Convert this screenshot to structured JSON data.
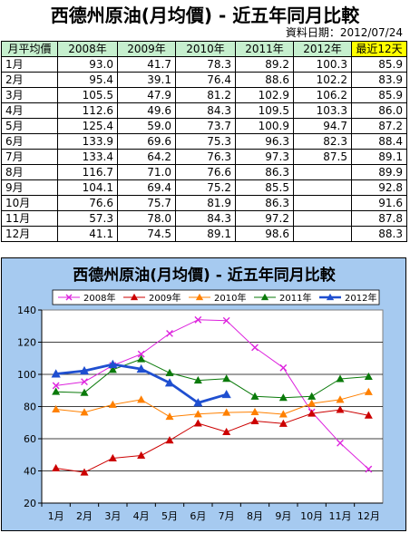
{
  "page_title": "西德州原油(月均價) - 近五年同月比較",
  "date_line": "資料日期：2012/07/24",
  "table": {
    "headers": [
      "月平均價",
      "2008年",
      "2009年",
      "2010年",
      "2011年",
      "2012年",
      "最近12天"
    ],
    "rows": [
      [
        "1月",
        "93.0",
        "41.7",
        "78.3",
        "89.2",
        "100.3",
        "85.9"
      ],
      [
        "2月",
        "95.4",
        "39.1",
        "76.4",
        "88.6",
        "102.2",
        "83.9"
      ],
      [
        "3月",
        "105.5",
        "47.9",
        "81.2",
        "102.9",
        "106.2",
        "85.9"
      ],
      [
        "4月",
        "112.6",
        "49.6",
        "84.3",
        "109.5",
        "103.3",
        "86.0"
      ],
      [
        "5月",
        "125.4",
        "59.0",
        "73.7",
        "100.9",
        "94.7",
        "87.2"
      ],
      [
        "6月",
        "133.9",
        "69.6",
        "75.3",
        "96.3",
        "82.3",
        "88.4"
      ],
      [
        "7月",
        "133.4",
        "64.2",
        "76.3",
        "97.3",
        "87.5",
        "89.1"
      ],
      [
        "8月",
        "116.7",
        "71.0",
        "76.6",
        "86.3",
        "",
        "89.9"
      ],
      [
        "9月",
        "104.1",
        "69.4",
        "75.2",
        "85.5",
        "",
        "92.8"
      ],
      [
        "10月",
        "76.6",
        "75.7",
        "81.9",
        "86.3",
        "",
        "91.6"
      ],
      [
        "11月",
        "57.3",
        "78.0",
        "84.3",
        "97.2",
        "",
        "87.8"
      ],
      [
        "12月",
        "41.1",
        "74.5",
        "89.1",
        "98.6",
        "",
        "88.3"
      ]
    ]
  },
  "chart_data": {
    "type": "line",
    "title": "西德州原油(月均價) - 近五年同月比較",
    "categories": [
      "1月",
      "2月",
      "3月",
      "4月",
      "5月",
      "6月",
      "7月",
      "8月",
      "9月",
      "10月",
      "11月",
      "12月"
    ],
    "ylim": [
      20,
      140
    ],
    "yticks": [
      20,
      40,
      60,
      80,
      100,
      120,
      140
    ],
    "grid": true,
    "legend_position": "top",
    "series": [
      {
        "name": "2008年",
        "color": "#dd22dd",
        "marker": "x",
        "bold": false,
        "values": [
          93.0,
          95.4,
          105.5,
          112.6,
          125.4,
          133.9,
          133.4,
          116.7,
          104.1,
          76.6,
          57.3,
          41.1
        ]
      },
      {
        "name": "2009年",
        "color": "#cc0000",
        "marker": "triangle",
        "bold": false,
        "values": [
          41.7,
          39.1,
          47.9,
          49.6,
          59.0,
          69.6,
          64.2,
          71.0,
          69.4,
          75.7,
          78.0,
          74.5
        ]
      },
      {
        "name": "2010年",
        "color": "#ff8000",
        "marker": "triangle",
        "bold": false,
        "values": [
          78.3,
          76.4,
          81.2,
          84.3,
          73.7,
          75.3,
          76.3,
          76.6,
          75.2,
          81.9,
          84.3,
          89.1
        ]
      },
      {
        "name": "2011年",
        "color": "#0a7a0a",
        "marker": "triangle",
        "bold": false,
        "values": [
          89.2,
          88.6,
          102.9,
          109.5,
          100.9,
          96.3,
          97.3,
          86.3,
          85.5,
          86.3,
          97.2,
          98.6
        ]
      },
      {
        "name": "2012年",
        "color": "#1f4fd0",
        "marker": "triangle",
        "bold": true,
        "values": [
          100.3,
          102.2,
          106.2,
          103.3,
          94.7,
          82.3,
          87.5,
          null,
          null,
          null,
          null,
          null
        ]
      }
    ]
  }
}
